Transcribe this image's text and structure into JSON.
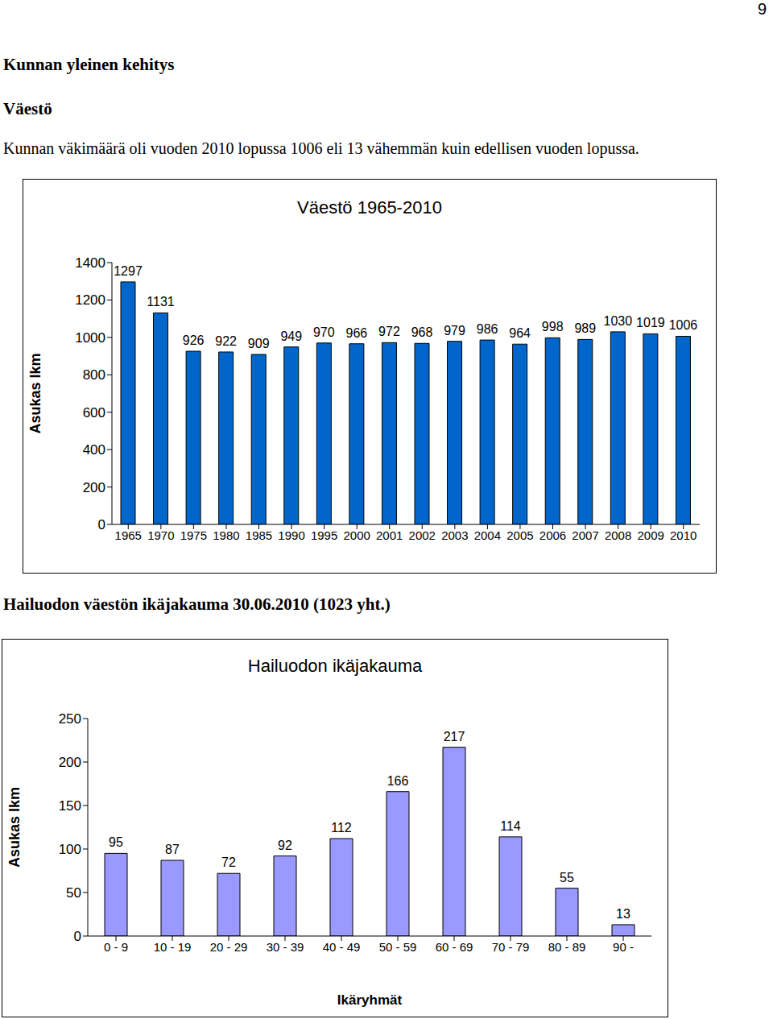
{
  "page_number": "9",
  "heading": "Kunnan yleinen kehitys",
  "subheading": "Väestö",
  "paragraph": "Kunnan väkimäärä oli vuoden 2010 lopussa 1006 eli 13 vähemmän kuin edellisen vuoden lopussa.",
  "caption": "Hailuodon väestön ikäjakauma 30.06.2010 (1023 yht.)",
  "chart_data": [
    {
      "type": "bar",
      "title": "Väestö 1965-2010",
      "y_label": "Asukas lkm",
      "categories": [
        "1965",
        "1970",
        "1975",
        "1980",
        "1985",
        "1990",
        "1995",
        "2000",
        "2001",
        "2002",
        "2003",
        "2004",
        "2005",
        "2006",
        "2007",
        "2008",
        "2009",
        "2010"
      ],
      "values": [
        1297,
        1131,
        926,
        922,
        909,
        949,
        970,
        966,
        972,
        968,
        979,
        986,
        964,
        998,
        989,
        1030,
        1019,
        1006
      ],
      "color": "#0066cc",
      "ylim": [
        0,
        1400
      ],
      "yticks": [
        0,
        200,
        400,
        600,
        800,
        1000,
        1200,
        1400
      ],
      "grid": false,
      "data_labels": true
    },
    {
      "type": "bar",
      "title": "Hailuodon ikäjakauma",
      "y_label": "Asukas lkm",
      "x_label": "Ikäryhmät",
      "categories": [
        "0 - 9",
        "10 - 19",
        "20 - 29",
        "30 - 39",
        "40 - 49",
        "50 - 59",
        "60 - 69",
        "70 - 79",
        "80 - 89",
        "90 -"
      ],
      "values": [
        95,
        87,
        72,
        92,
        112,
        166,
        217,
        114,
        55,
        13
      ],
      "color": "#9999ff",
      "ylim": [
        0,
        250
      ],
      "yticks": [
        0,
        50,
        100,
        150,
        200,
        250
      ],
      "grid": false,
      "data_labels": true
    }
  ]
}
